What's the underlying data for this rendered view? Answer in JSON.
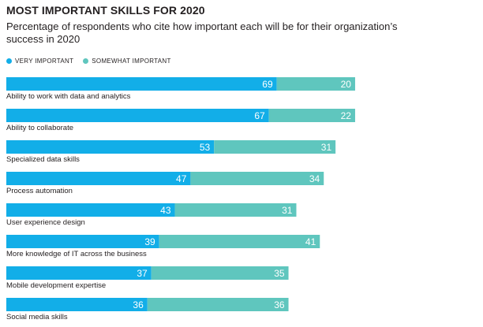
{
  "colors": {
    "very": "#12aee8",
    "somewhat": "#5fc6be",
    "text": "#231f20",
    "bar_label": "#ffffff"
  },
  "chart_data": {
    "type": "bar",
    "orientation": "horizontal",
    "stacked": true,
    "title": "MOST IMPORTANT SKILLS FOR 2020",
    "subtitle": "Percentage of respondents who cite how important each will be for their organization’s success in 2020",
    "legend_position": "top-left",
    "categories": [
      "Ability to work with data and analytics",
      "Ability to collaborate",
      "Specialized data skills",
      "Process automation",
      "User experience design",
      "More knowledge of IT across the business",
      "Mobile development expertise",
      "Social media skills"
    ],
    "series": [
      {
        "name": "VERY IMPORTANT",
        "values": [
          69,
          67,
          53,
          47,
          43,
          39,
          37,
          36
        ]
      },
      {
        "name": "SOMEWHAT IMPORTANT",
        "values": [
          20,
          22,
          31,
          34,
          31,
          41,
          35,
          36
        ]
      }
    ],
    "xlim": [
      0,
      100
    ],
    "grid": false
  }
}
